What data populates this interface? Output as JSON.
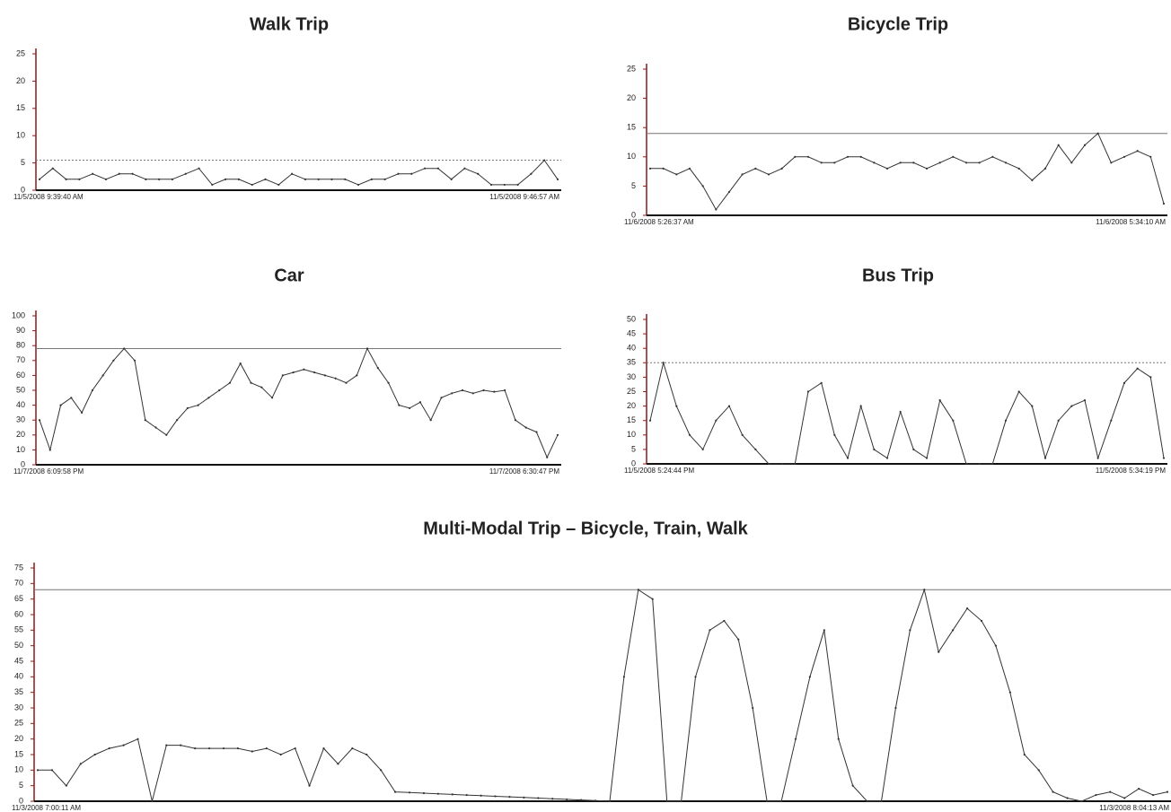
{
  "chart_data": [
    {
      "type": "line",
      "title": "Walk Trip",
      "categories": [
        "11/5/2008 9:39:40 AM",
        null,
        null,
        null,
        null,
        null,
        null,
        null,
        null,
        null,
        null,
        null,
        null,
        null,
        null,
        null,
        null,
        null,
        null,
        null,
        null,
        null,
        null,
        null,
        null,
        null,
        null,
        null,
        null,
        null,
        null,
        null,
        null,
        null,
        null,
        null,
        null,
        null,
        null,
        "11/5/2008 9:46:57 AM"
      ],
      "values": [
        2,
        4,
        2,
        2,
        3,
        2,
        3,
        3,
        2,
        2,
        2,
        3,
        4,
        1,
        2,
        2,
        1,
        2,
        1,
        3,
        2,
        2,
        2,
        2,
        1,
        2,
        2,
        3,
        3,
        4,
        4,
        2,
        4,
        3,
        1,
        1,
        1,
        3,
        5.5,
        2
      ],
      "color": "#333333",
      "ylim": [
        0,
        25
      ],
      "yticks": [
        0,
        5,
        10,
        15,
        20,
        25
      ],
      "reference_line": 5.5,
      "reference_line_dashed": true
    },
    {
      "type": "line",
      "title": "Bicycle Trip",
      "categories": [
        "11/6/2008 5:26:37 AM",
        null,
        null,
        null,
        null,
        null,
        null,
        null,
        null,
        null,
        null,
        null,
        null,
        null,
        null,
        null,
        null,
        null,
        null,
        null,
        null,
        null,
        null,
        null,
        null,
        null,
        null,
        null,
        null,
        null,
        null,
        null,
        null,
        null,
        null,
        null,
        null,
        null,
        null,
        "11/6/2008 5:34:10 AM"
      ],
      "values": [
        8,
        8,
        7,
        8,
        5,
        1,
        4,
        7,
        8,
        7,
        8,
        10,
        10,
        9,
        9,
        10,
        10,
        9,
        8,
        9,
        9,
        8,
        9,
        10,
        9,
        9,
        10,
        9,
        8,
        6,
        8,
        12,
        9,
        12,
        14,
        9,
        10,
        11,
        10,
        2
      ],
      "color": "#333333",
      "ylim": [
        0,
        25
      ],
      "yticks": [
        0,
        5,
        10,
        15,
        20,
        25
      ],
      "reference_line": 14,
      "reference_line_dashed": false
    },
    {
      "type": "line",
      "title": "Car",
      "categories": [
        "11/7/2008 6:09:58 PM",
        null,
        null,
        null,
        null,
        null,
        null,
        null,
        null,
        null,
        null,
        null,
        null,
        null,
        null,
        null,
        null,
        null,
        null,
        null,
        null,
        null,
        null,
        null,
        null,
        null,
        null,
        null,
        null,
        null,
        null,
        null,
        null,
        null,
        null,
        null,
        null,
        null,
        null,
        null,
        null,
        null,
        null,
        null,
        null,
        null,
        null,
        null,
        null,
        "11/7/2008 6:30:47 PM"
      ],
      "values": [
        30,
        10,
        40,
        45,
        35,
        50,
        60,
        70,
        78,
        70,
        30,
        25,
        20,
        30,
        38,
        40,
        45,
        50,
        55,
        68,
        55,
        52,
        45,
        60,
        62,
        64,
        62,
        60,
        58,
        55,
        60,
        78,
        65,
        55,
        40,
        38,
        42,
        30,
        45,
        48,
        50,
        48,
        50,
        49,
        50,
        30,
        25,
        22,
        5,
        20
      ],
      "color": "#333333",
      "ylim": [
        0,
        100
      ],
      "yticks": [
        0,
        10,
        20,
        30,
        40,
        50,
        60,
        70,
        80,
        90,
        100
      ],
      "reference_line": 78,
      "reference_line_dashed": false
    },
    {
      "type": "line",
      "title": "Bus Trip",
      "categories": [
        "11/5/2008 5:24:44 PM",
        null,
        null,
        null,
        null,
        null,
        null,
        null,
        null,
        null,
        null,
        null,
        null,
        null,
        null,
        null,
        null,
        null,
        null,
        null,
        null,
        null,
        null,
        null,
        null,
        null,
        null,
        null,
        null,
        null,
        null,
        null,
        null,
        null,
        null,
        null,
        null,
        null,
        null,
        "11/5/2008 5:34:19 PM"
      ],
      "values": [
        15,
        35,
        20,
        10,
        5,
        15,
        20,
        10,
        5,
        0,
        0,
        0,
        25,
        28,
        10,
        2,
        20,
        5,
        2,
        18,
        5,
        2,
        22,
        15,
        0,
        0,
        0,
        15,
        25,
        20,
        2,
        15,
        20,
        22,
        2,
        15,
        28,
        33,
        30,
        2
      ],
      "color": "#333333",
      "ylim": [
        0,
        50
      ],
      "yticks": [
        0,
        5,
        10,
        15,
        20,
        25,
        30,
        35,
        40,
        45,
        50
      ],
      "reference_line": 35,
      "reference_line_dashed": true
    },
    {
      "type": "line",
      "title": "Multi-Modal Trip – Bicycle, Train, Walk",
      "categories": [
        "11/3/2008 7:00:11 AM",
        null,
        null,
        null,
        null,
        null,
        null,
        null,
        null,
        null,
        null,
        null,
        null,
        null,
        null,
        null,
        null,
        null,
        null,
        null,
        null,
        null,
        null,
        null,
        null,
        null,
        null,
        null,
        null,
        null,
        null,
        null,
        null,
        null,
        null,
        null,
        null,
        null,
        null,
        null,
        null,
        null,
        null,
        null,
        null,
        null,
        null,
        null,
        null,
        null,
        null,
        null,
        null,
        null,
        null,
        null,
        null,
        null,
        null,
        null,
        null,
        null,
        null,
        null,
        null,
        null,
        null,
        null,
        null,
        null,
        null,
        null,
        null,
        null,
        null,
        null,
        null,
        null,
        null,
        "11/3/2008 8:04:13 AM"
      ],
      "values": [
        10,
        10,
        5,
        12,
        15,
        17,
        18,
        20,
        0,
        18,
        18,
        17,
        17,
        17,
        17,
        16,
        17,
        15,
        17,
        5,
        17,
        12,
        17,
        15,
        10,
        3,
        2.8,
        2.6,
        2.4,
        2.2,
        2,
        1.8,
        1.6,
        1.4,
        1.2,
        1,
        0.8,
        0.6,
        0.4,
        0.2,
        0,
        40,
        68,
        65,
        0,
        0,
        40,
        55,
        58,
        52,
        30,
        0,
        0,
        20,
        40,
        55,
        20,
        5,
        0,
        0,
        30,
        55,
        68,
        48,
        55,
        62,
        58,
        50,
        35,
        15,
        10,
        3,
        1,
        0,
        2,
        3,
        1,
        4,
        2,
        3
      ],
      "color": "#333333",
      "ylim": [
        0,
        75
      ],
      "yticks": [
        0,
        5,
        10,
        15,
        20,
        25,
        30,
        35,
        40,
        45,
        50,
        55,
        60,
        65,
        70,
        75
      ],
      "reference_line": 68,
      "reference_line_dashed": false
    }
  ]
}
